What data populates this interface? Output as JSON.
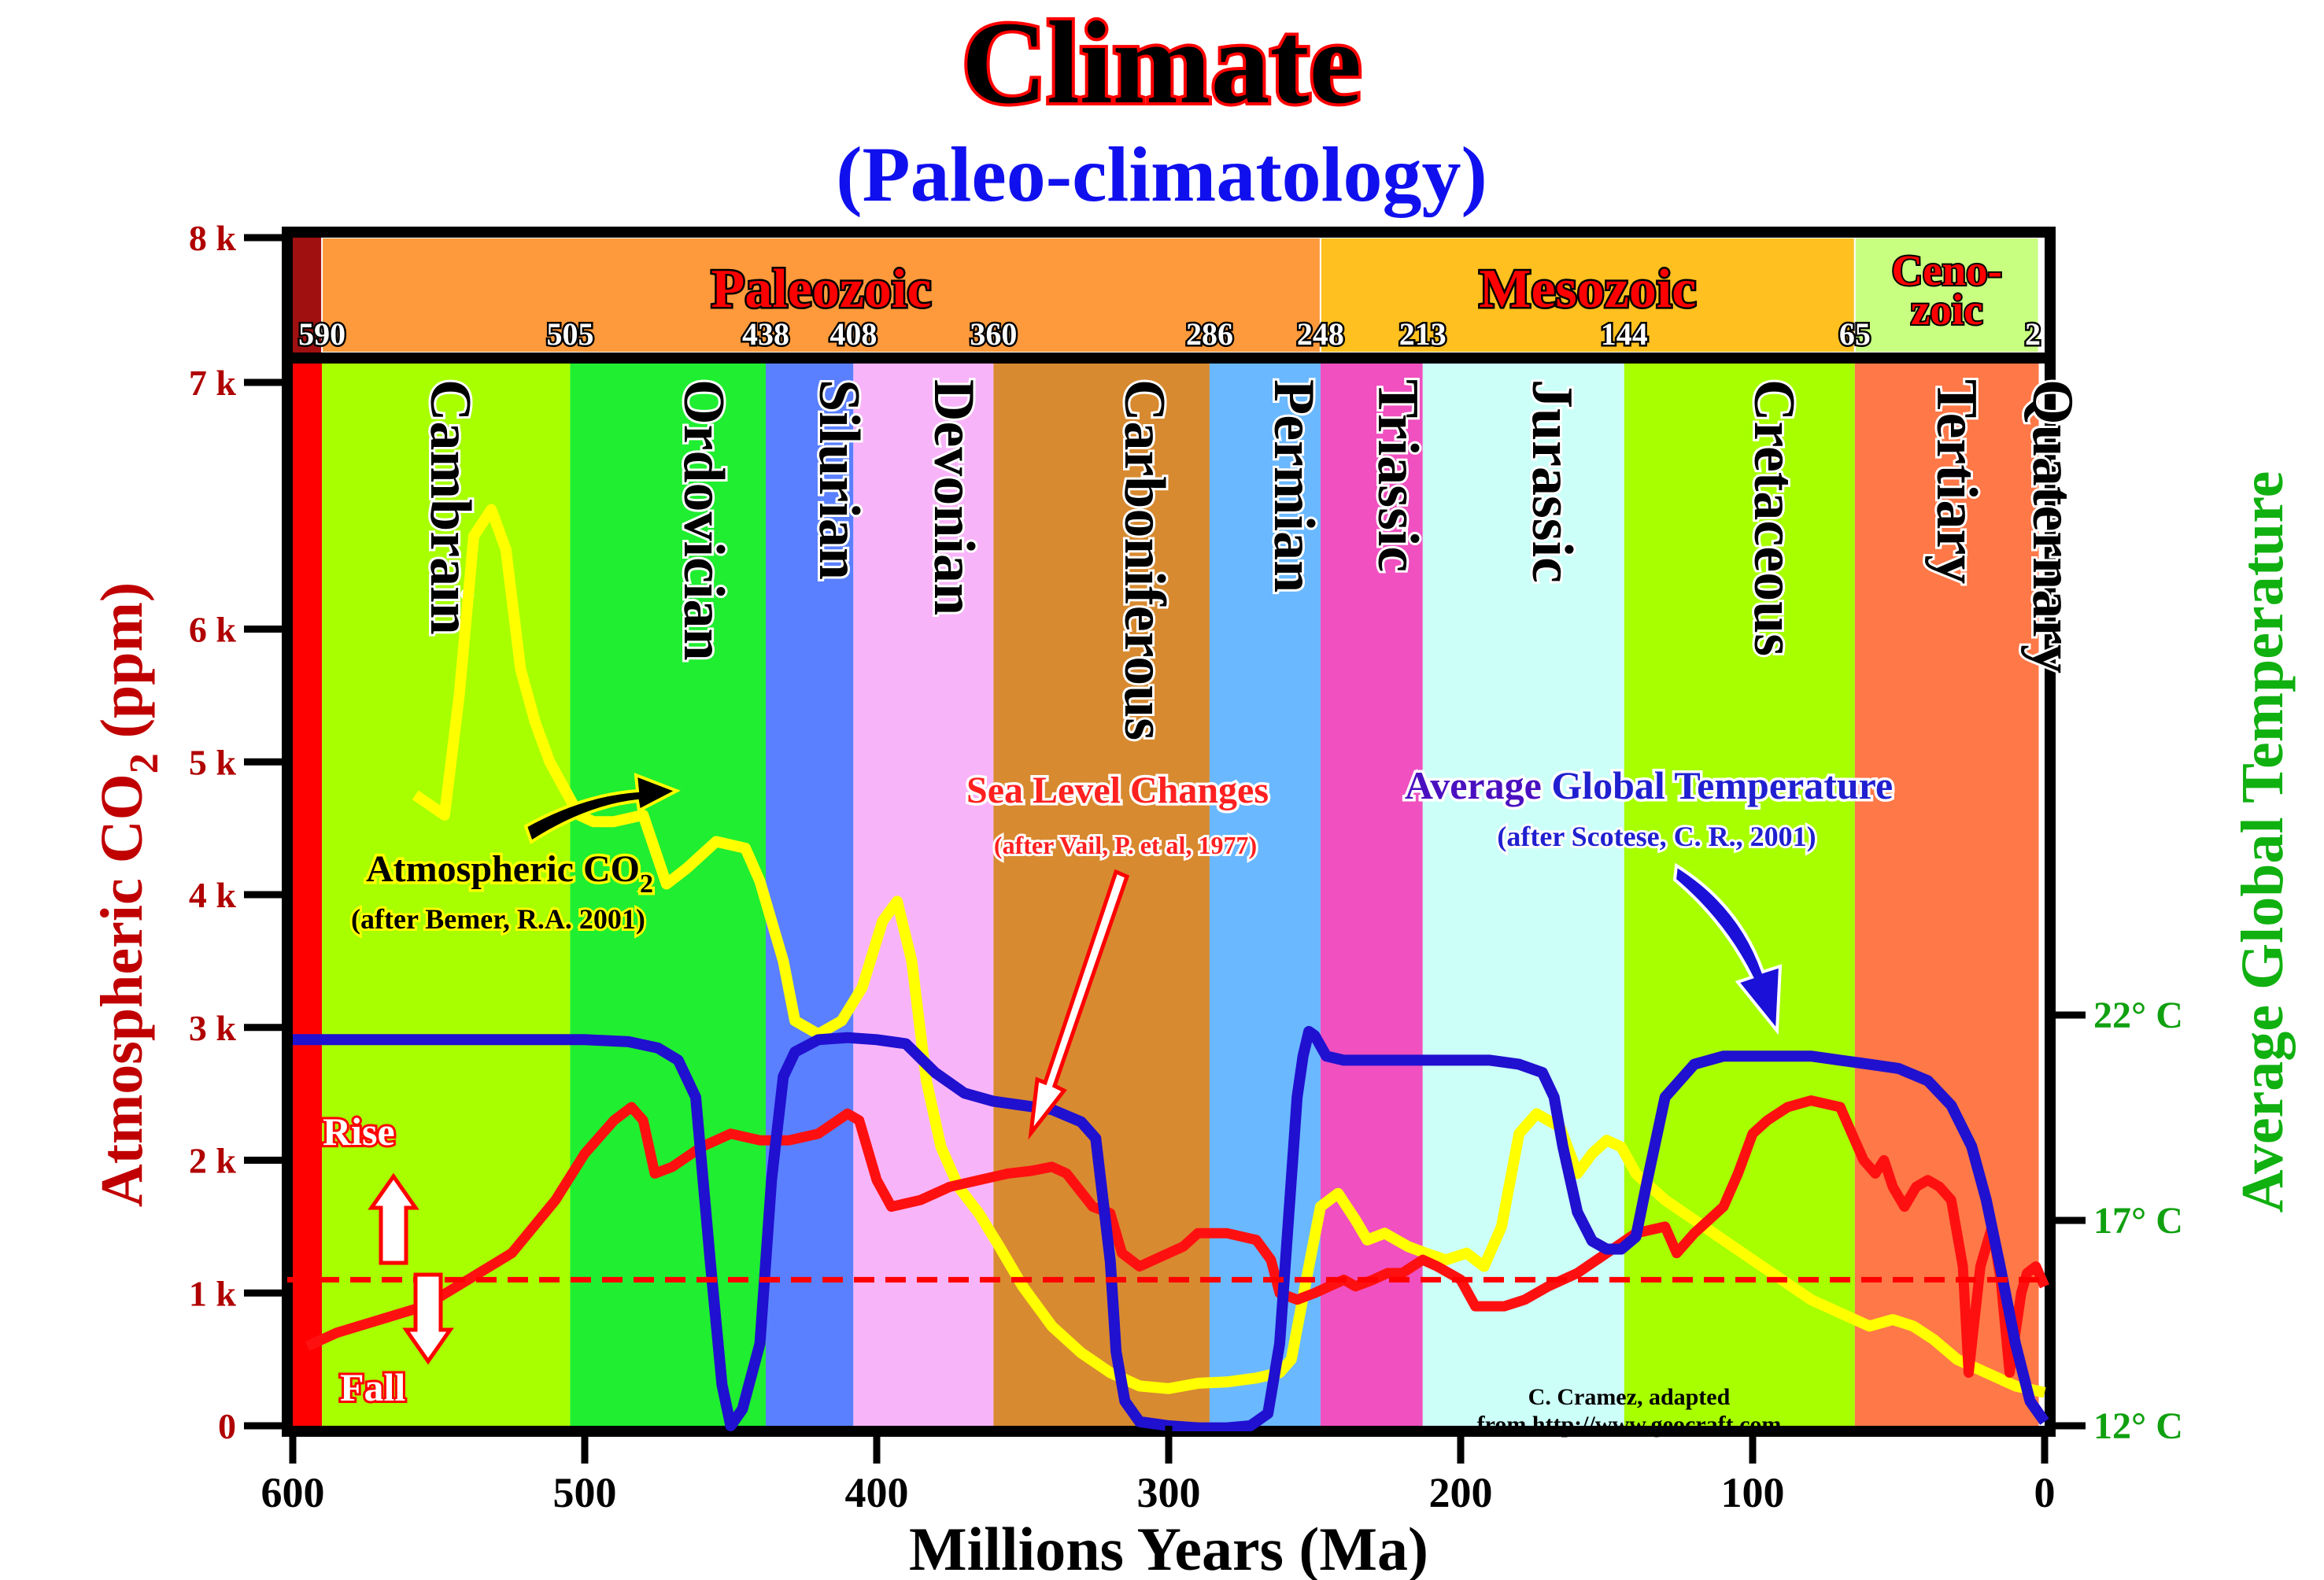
{
  "title": "Climate",
  "subtitle": "(Paleo-climatology)",
  "credit": "C. Cramez, adapted",
  "credit_source": "from http://www.geocraft.com",
  "chart_data": {
    "type": "line",
    "xlabel": "Millions Years (Ma)",
    "ylabel_left_pre": "Atmospheric CO",
    "ylabel_left_sub": "2",
    "ylabel_left_post": " (ppm)",
    "ylabel_right": "Average Global Temperature",
    "xlim": [
      600,
      0
    ],
    "ylim": [
      0,
      8000
    ],
    "x_ticks": [
      600,
      500,
      400,
      300,
      200,
      100,
      0
    ],
    "y_ticks": [
      {
        "value": 0,
        "label": "0"
      },
      {
        "value": 1000,
        "label": "1 k"
      },
      {
        "value": 2000,
        "label": "2 k"
      },
      {
        "value": 3000,
        "label": "3 k"
      },
      {
        "value": 4000,
        "label": "4 k"
      },
      {
        "value": 5000,
        "label": "5 k"
      },
      {
        "value": 6000,
        "label": "6 k"
      },
      {
        "value": 7000,
        "label": "7 k"
      },
      {
        "value": 8000,
        "label": "8 k"
      }
    ],
    "right_ticks": [
      {
        "value": 22,
        "label": "22° C"
      },
      {
        "value": 17,
        "label": "17° C"
      },
      {
        "value": 12,
        "label": "12° C"
      }
    ],
    "eras": [
      {
        "name": "Paleozoic",
        "start": 590,
        "end": 248,
        "color": "#ff9a3c"
      },
      {
        "name": "Mesozoic",
        "start": 248,
        "end": 65,
        "color": "#ffc020"
      },
      {
        "name": "Ceno-",
        "name2": "zoic",
        "start": 65,
        "end": 2,
        "color": "#c8ff80"
      }
    ],
    "era_ticks": [
      "590",
      "505",
      "438",
      "408",
      "360",
      "286",
      "248",
      "213",
      "144",
      "65",
      "2"
    ],
    "periods": [
      {
        "name": "Cambrain",
        "start": 590,
        "end": 505,
        "color": "#a8ff00"
      },
      {
        "name": "Ordovician",
        "start": 505,
        "end": 438,
        "color": "#20ee30"
      },
      {
        "name": "Silurian",
        "start": 438,
        "end": 408,
        "color": "#5a80ff"
      },
      {
        "name": "Devonian",
        "start": 408,
        "end": 360,
        "color": "#f8b4f8"
      },
      {
        "name": "Carboniferous",
        "start": 360,
        "end": 286,
        "color": "#d88a30"
      },
      {
        "name": "Permian",
        "start": 286,
        "end": 248,
        "color": "#6ab8ff"
      },
      {
        "name": "Triassic",
        "start": 248,
        "end": 213,
        "color": "#f050c0"
      },
      {
        "name": "Jurassic",
        "start": 213,
        "end": 144,
        "color": "#ccfff8"
      },
      {
        "name": "Cretaceous",
        "start": 144,
        "end": 65,
        "color": "#a8ff00"
      },
      {
        "name": "Tertiary",
        "start": 65,
        "end": 2,
        "color": "#ff7848"
      },
      {
        "name": "Quaternary",
        "start": 2,
        "end": 0,
        "color": "#ffffff"
      }
    ],
    "series": [
      {
        "name": "Atmospheric CO",
        "name_sub": "2",
        "source": "(after Bemer, R.A. 2001)",
        "color": "#ffff00",
        "x": [
          558,
          548,
          543,
          538,
          532,
          527,
          522,
          517,
          512,
          507,
          502,
          497,
          490,
          480,
          472,
          465,
          455,
          445,
          440,
          432,
          428,
          420,
          412,
          405,
          398,
          393,
          388,
          383,
          378,
          372,
          365,
          358,
          350,
          340,
          330,
          320,
          310,
          300,
          290,
          280,
          270,
          262,
          258,
          252,
          248,
          242,
          236,
          232,
          226,
          218,
          212,
          205,
          198,
          192,
          186,
          180,
          174,
          166,
          160,
          155,
          150,
          145,
          140,
          130,
          120,
          110,
          100,
          90,
          80,
          70,
          60,
          52,
          45,
          38,
          30,
          20,
          10,
          0
        ],
        "y": [
          4750,
          4600,
          5500,
          6700,
          6900,
          6600,
          5700,
          5300,
          5000,
          4800,
          4600,
          4550,
          4550,
          4600,
          4080,
          4200,
          4400,
          4350,
          4100,
          3500,
          3050,
          2950,
          3050,
          3300,
          3800,
          3950,
          3500,
          2600,
          2100,
          1800,
          1600,
          1350,
          1050,
          750,
          550,
          400,
          300,
          280,
          320,
          330,
          360,
          400,
          500,
          1200,
          1650,
          1750,
          1550,
          1400,
          1450,
          1350,
          1300,
          1250,
          1300,
          1200,
          1500,
          2200,
          2350,
          2250,
          1900,
          2050,
          2150,
          2100,
          1900,
          1700,
          1550,
          1400,
          1250,
          1100,
          950,
          850,
          750,
          800,
          750,
          650,
          500,
          400,
          300,
          250
        ]
      },
      {
        "name": "Sea Level Changes",
        "source": "(after Vail, P. et al, 1977)",
        "color": "#ff1010",
        "x": [
          595,
          585,
          570,
          555,
          540,
          525,
          510,
          500,
          490,
          484,
          480,
          476,
          470,
          460,
          450,
          440,
          430,
          420,
          410,
          406,
          400,
          395,
          385,
          375,
          365,
          355,
          347,
          340,
          335,
          326,
          320,
          316,
          310,
          300,
          295,
          290,
          280,
          270,
          265,
          262,
          256,
          250,
          245,
          240,
          236,
          230,
          225,
          220,
          213,
          208,
          200,
          195,
          185,
          178,
          170,
          160,
          150,
          140,
          130,
          126,
          120,
          110,
          105,
          100,
          95,
          88,
          80,
          70,
          66,
          62,
          58,
          55,
          52,
          48,
          44,
          40,
          36,
          32,
          28,
          26,
          22,
          18,
          15,
          12,
          8,
          6,
          3,
          0
        ],
        "y": [
          600,
          700,
          800,
          900,
          1100,
          1300,
          1700,
          2050,
          2300,
          2400,
          2300,
          1900,
          1950,
          2100,
          2200,
          2150,
          2150,
          2200,
          2350,
          2300,
          1850,
          1650,
          1700,
          1800,
          1850,
          1900,
          1920,
          1950,
          1900,
          1650,
          1600,
          1300,
          1200,
          1300,
          1350,
          1450,
          1450,
          1400,
          1250,
          1000,
          950,
          1000,
          1050,
          1100,
          1050,
          1100,
          1150,
          1150,
          1250,
          1200,
          1100,
          900,
          900,
          950,
          1050,
          1150,
          1300,
          1450,
          1500,
          1300,
          1450,
          1650,
          1900,
          2200,
          2300,
          2400,
          2450,
          2400,
          2200,
          2000,
          1900,
          2000,
          1800,
          1650,
          1800,
          1850,
          1800,
          1700,
          1200,
          400,
          1200,
          1500,
          1100,
          400,
          1000,
          1150,
          1200,
          1050
        ]
      },
      {
        "name": "Average Global Temperature",
        "name_pre": "Average",
        "name_post": " Global Temperature",
        "source": "(after Scotese, C. R., 2001)",
        "color": "#2010d0",
        "x": [
          600,
          580,
          560,
          540,
          520,
          500,
          485,
          475,
          468,
          462,
          457,
          453,
          450,
          446,
          440,
          436,
          432,
          428,
          420,
          410,
          400,
          390,
          380,
          370,
          360,
          350,
          340,
          330,
          325,
          320,
          318,
          315,
          310,
          300,
          290,
          280,
          272,
          266,
          262,
          258,
          256,
          254,
          252,
          250,
          246,
          240,
          230,
          220,
          210,
          200,
          190,
          180,
          172,
          168,
          165,
          160,
          155,
          150,
          145,
          140,
          136,
          130,
          120,
          110,
          100,
          90,
          80,
          70,
          60,
          50,
          40,
          32,
          25,
          20,
          15,
          10,
          5,
          0
        ],
        "y": [
          21.4,
          21.4,
          21.4,
          21.4,
          21.4,
          21.4,
          21.35,
          21.2,
          20.9,
          20.0,
          16.0,
          13.0,
          12.0,
          12.4,
          14.0,
          18.0,
          20.5,
          21.1,
          21.4,
          21.45,
          21.4,
          21.3,
          20.6,
          20.1,
          19.9,
          19.8,
          19.7,
          19.4,
          19.0,
          16.0,
          13.8,
          12.6,
          12.1,
          12.0,
          11.95,
          11.95,
          12.0,
          12.3,
          14.0,
          18.0,
          20.0,
          21.0,
          21.6,
          21.5,
          21.0,
          20.9,
          20.9,
          20.9,
          20.9,
          20.9,
          20.9,
          20.8,
          20.6,
          20.0,
          18.8,
          17.2,
          16.5,
          16.3,
          16.3,
          16.6,
          18.0,
          20.0,
          20.8,
          21.0,
          21.0,
          21.0,
          21.0,
          20.9,
          20.8,
          20.7,
          20.4,
          19.8,
          18.8,
          17.5,
          15.8,
          14.0,
          12.6,
          12.1
        ]
      }
    ],
    "reference_line": {
      "value": 1100,
      "label_rise": "Rise",
      "label_fall": "Fall"
    }
  }
}
